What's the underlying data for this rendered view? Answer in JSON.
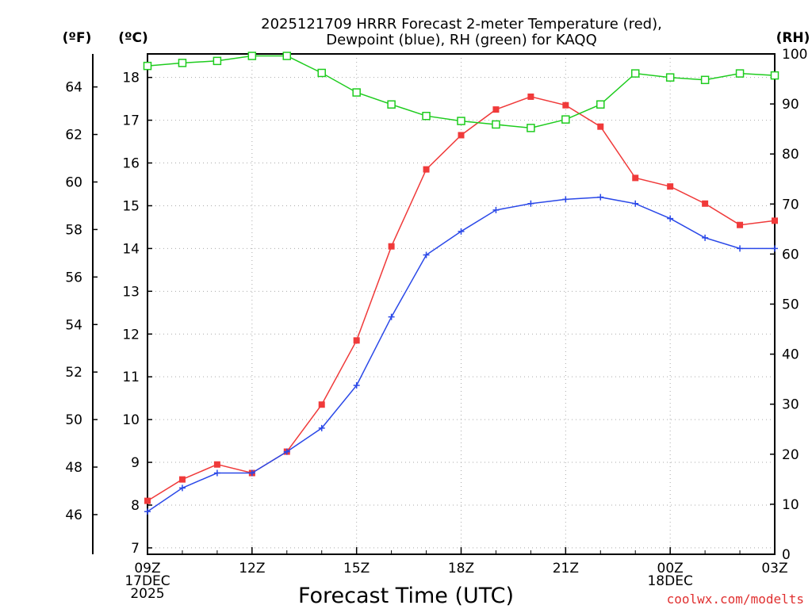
{
  "chart_data": {
    "type": "line",
    "title_line1": "2025121709 HRRR Forecast 2-meter Temperature (red),",
    "title_line2": "Dewpoint (blue), RH (green) for KAQQ",
    "xlabel": "Forecast Time (UTC)",
    "left_outer_label": "(ºF)",
    "left_inner_label": "(ºC)",
    "right_label": "(RH)",
    "credit": "coolwx.com/modelts",
    "x_hours": [
      0,
      1,
      2,
      3,
      4,
      5,
      6,
      7,
      8,
      9,
      10,
      11,
      12,
      13,
      14,
      15,
      16,
      17,
      18
    ],
    "x_ticks": [
      {
        "hour": 0,
        "lines": [
          "09Z",
          "17DEC",
          "2025"
        ]
      },
      {
        "hour": 3,
        "lines": [
          "12Z"
        ]
      },
      {
        "hour": 6,
        "lines": [
          "15Z"
        ]
      },
      {
        "hour": 9,
        "lines": [
          "18Z"
        ]
      },
      {
        "hour": 12,
        "lines": [
          "21Z"
        ]
      },
      {
        "hour": 15,
        "lines": [
          "00Z",
          "18DEC"
        ]
      },
      {
        "hour": 18,
        "lines": [
          "03Z"
        ]
      }
    ],
    "celsius_ticks": [
      7,
      8,
      9,
      10,
      11,
      12,
      13,
      14,
      15,
      16,
      17,
      18
    ],
    "celsius_range": [
      6.85,
      18.55
    ],
    "fahrenheit_ticks": [
      46,
      48,
      50,
      52,
      54,
      56,
      58,
      60,
      62,
      64
    ],
    "rh_ticks": [
      0,
      10,
      20,
      30,
      40,
      50,
      60,
      70,
      80,
      90,
      100
    ],
    "rh_range": [
      0,
      100
    ],
    "series": [
      {
        "name": "Temperature",
        "unit": "°C",
        "axis": "celsius",
        "color": "#f03a3a",
        "marker": "filled-square",
        "values": [
          8.1,
          8.6,
          8.95,
          8.75,
          9.25,
          10.35,
          11.85,
          14.05,
          15.85,
          16.65,
          17.25,
          17.55,
          17.35,
          16.85,
          15.65,
          15.45,
          15.05,
          14.55,
          14.65
        ]
      },
      {
        "name": "Dewpoint",
        "unit": "°C",
        "axis": "celsius",
        "color": "#2a48e8",
        "marker": "plus",
        "values": [
          7.85,
          8.4,
          8.75,
          8.75,
          9.25,
          9.8,
          10.8,
          12.4,
          13.85,
          14.4,
          14.9,
          15.05,
          15.15,
          15.2,
          15.05,
          14.7,
          14.25,
          14.0,
          14.0
        ]
      },
      {
        "name": "RH",
        "unit": "%",
        "axis": "rh",
        "color": "#1ecc1e",
        "marker": "open-square",
        "values": [
          97.6,
          98.2,
          98.6,
          99.6,
          99.6,
          96.2,
          92.3,
          89.9,
          87.6,
          86.6,
          85.9,
          85.2,
          86.9,
          89.9,
          96.1,
          95.3,
          94.8,
          96.1,
          95.7
        ]
      }
    ]
  }
}
